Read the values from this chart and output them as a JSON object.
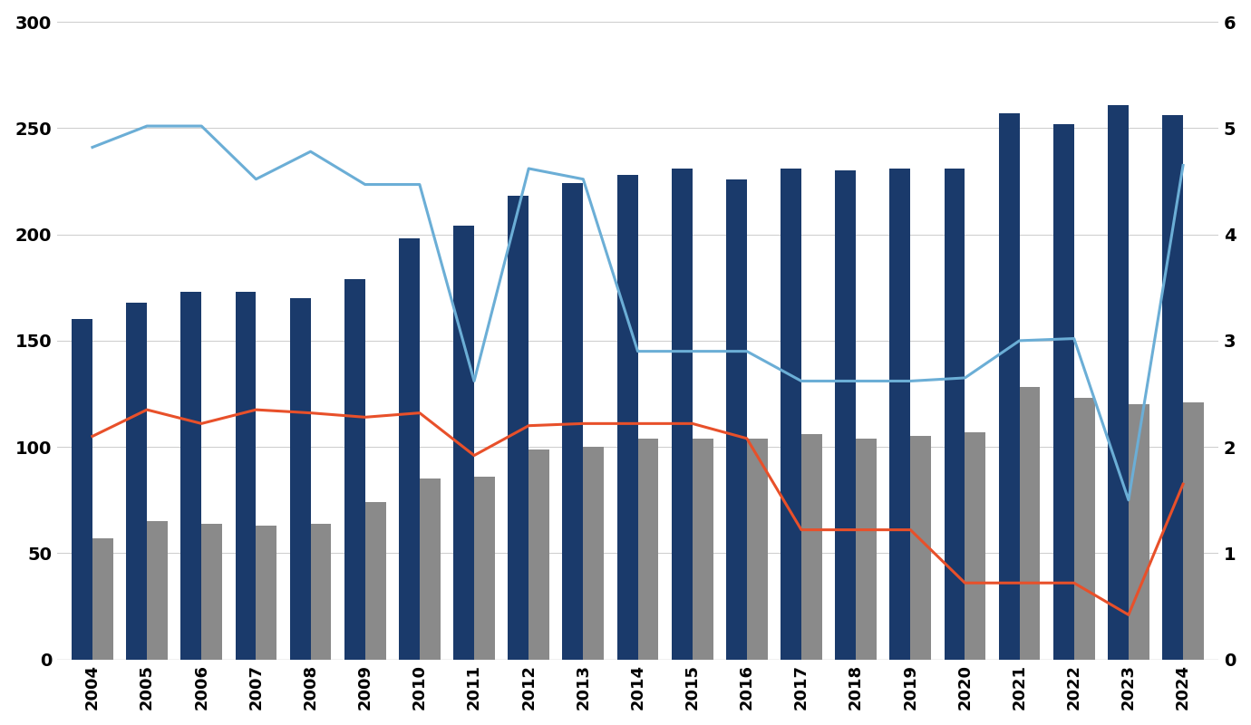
{
  "years": [
    2004,
    2005,
    2006,
    2007,
    2008,
    2009,
    2010,
    2011,
    2012,
    2013,
    2014,
    2015,
    2016,
    2017,
    2018,
    2019,
    2020,
    2021,
    2022,
    2023,
    2024
  ],
  "japan_debt_gdp": [
    160,
    168,
    173,
    173,
    170,
    179,
    198,
    204,
    218,
    224,
    228,
    231,
    226,
    231,
    230,
    231,
    231,
    257,
    252,
    261,
    256
  ],
  "us_debt_gdp": [
    57,
    65,
    64,
    63,
    64,
    74,
    85,
    86,
    99,
    100,
    104,
    104,
    104,
    106,
    104,
    105,
    107,
    128,
    123,
    120,
    121
  ],
  "japan_30yr_yield": [
    4.82,
    5.02,
    5.02,
    4.52,
    4.78,
    4.47,
    4.47,
    2.62,
    4.62,
    4.52,
    2.9,
    2.9,
    2.9,
    2.62,
    2.62,
    2.62,
    2.65,
    3.0,
    3.02,
    1.5,
    4.65
  ],
  "us_30yr_yield": [
    2.1,
    2.35,
    2.22,
    2.35,
    2.32,
    2.28,
    2.32,
    1.92,
    2.2,
    2.22,
    2.22,
    2.22,
    2.08,
    1.22,
    1.22,
    1.22,
    0.72,
    0.72,
    0.72,
    0.42,
    1.65
  ],
  "bar_color_japan": "#1a3a6b",
  "bar_color_us": "#8a8a8a",
  "line_color_japan_yield": "#6baed6",
  "line_color_us_yield": "#e8502a",
  "background_color": "#ffffff",
  "ylim_left": [
    0,
    300
  ],
  "ylim_right": [
    0,
    6
  ],
  "yticks_left": [
    0,
    50,
    100,
    150,
    200,
    250,
    300
  ],
  "yticks_right": [
    0,
    1,
    2,
    3,
    4,
    5,
    6
  ]
}
